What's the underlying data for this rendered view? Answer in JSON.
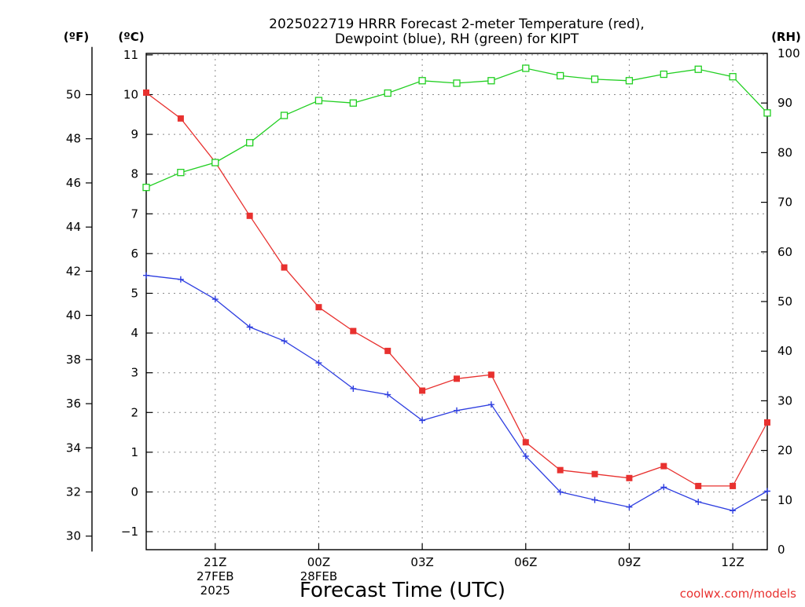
{
  "chart_data": {
    "type": "line",
    "title": "2025022719 HRRR Forecast 2-meter Temperature (red),",
    "subtitle": "Dewpoint (blue), RH (green) for KIPT",
    "xlabel": "Forecast Time (UTC)",
    "ylabel_left_f": "(ºF)",
    "ylabel_left_c": "(ºC)",
    "ylabel_right": "(RH)",
    "credit": "coolwx.com/models",
    "grid": true,
    "x": [
      19,
      20,
      21,
      22,
      23,
      24,
      25,
      26,
      27,
      28,
      29,
      30,
      31,
      32,
      33,
      34,
      35,
      36,
      37
    ],
    "x_range": [
      19,
      37
    ],
    "x_ticks": [
      {
        "x": 21,
        "lines": [
          "21Z",
          "27FEB",
          "2025"
        ]
      },
      {
        "x": 24,
        "lines": [
          "00Z",
          "28FEB"
        ]
      },
      {
        "x": 27,
        "lines": [
          "03Z"
        ]
      },
      {
        "x": 30,
        "lines": [
          "06Z"
        ]
      },
      {
        "x": 33,
        "lines": [
          "09Z"
        ]
      },
      {
        "x": 36,
        "lines": [
          "12Z"
        ]
      }
    ],
    "ylim_c": [
      -1.5,
      11
    ],
    "yticks_c": [
      -1,
      0,
      1,
      2,
      3,
      4,
      5,
      6,
      7,
      8,
      9,
      10,
      11
    ],
    "yticks_c_labels": [
      "−1",
      "0",
      "1",
      "2",
      "3",
      "4",
      "5",
      "6",
      "7",
      "8",
      "9",
      "10",
      "11"
    ],
    "yticks_f": [
      30,
      32,
      34,
      36,
      38,
      40,
      42,
      44,
      46,
      48,
      50
    ],
    "ylim_rh": [
      0,
      100
    ],
    "yticks_rh": [
      0,
      10,
      20,
      30,
      40,
      50,
      60,
      70,
      80,
      90,
      100
    ],
    "series": [
      {
        "name": "Temperature",
        "color": "#e8312f",
        "axis": "c",
        "marker": "filled-square",
        "values": [
          10.05,
          9.4,
          8.3,
          6.95,
          5.65,
          4.65,
          4.05,
          3.55,
          2.55,
          2.85,
          2.95,
          1.25,
          0.55,
          0.45,
          0.35,
          0.65,
          0.15,
          0.15,
          1.75
        ]
      },
      {
        "name": "Dewpoint",
        "color": "#2e3ee0",
        "axis": "c",
        "marker": "plus",
        "values": [
          5.45,
          5.35,
          4.85,
          4.15,
          3.8,
          3.25,
          2.6,
          2.45,
          1.8,
          2.05,
          2.2,
          0.9,
          0.0,
          -0.2,
          -0.38,
          0.12,
          -0.25,
          -0.47,
          0.02
        ]
      },
      {
        "name": "RH",
        "color": "#21cf21",
        "axis": "rh",
        "marker": "open-square",
        "values": [
          73,
          76,
          78,
          82,
          87.5,
          90.5,
          90,
          92,
          94.5,
          94,
          94.5,
          97,
          95.5,
          94.8,
          94.5,
          95.8,
          96.8,
          95.3,
          88
        ]
      }
    ]
  }
}
